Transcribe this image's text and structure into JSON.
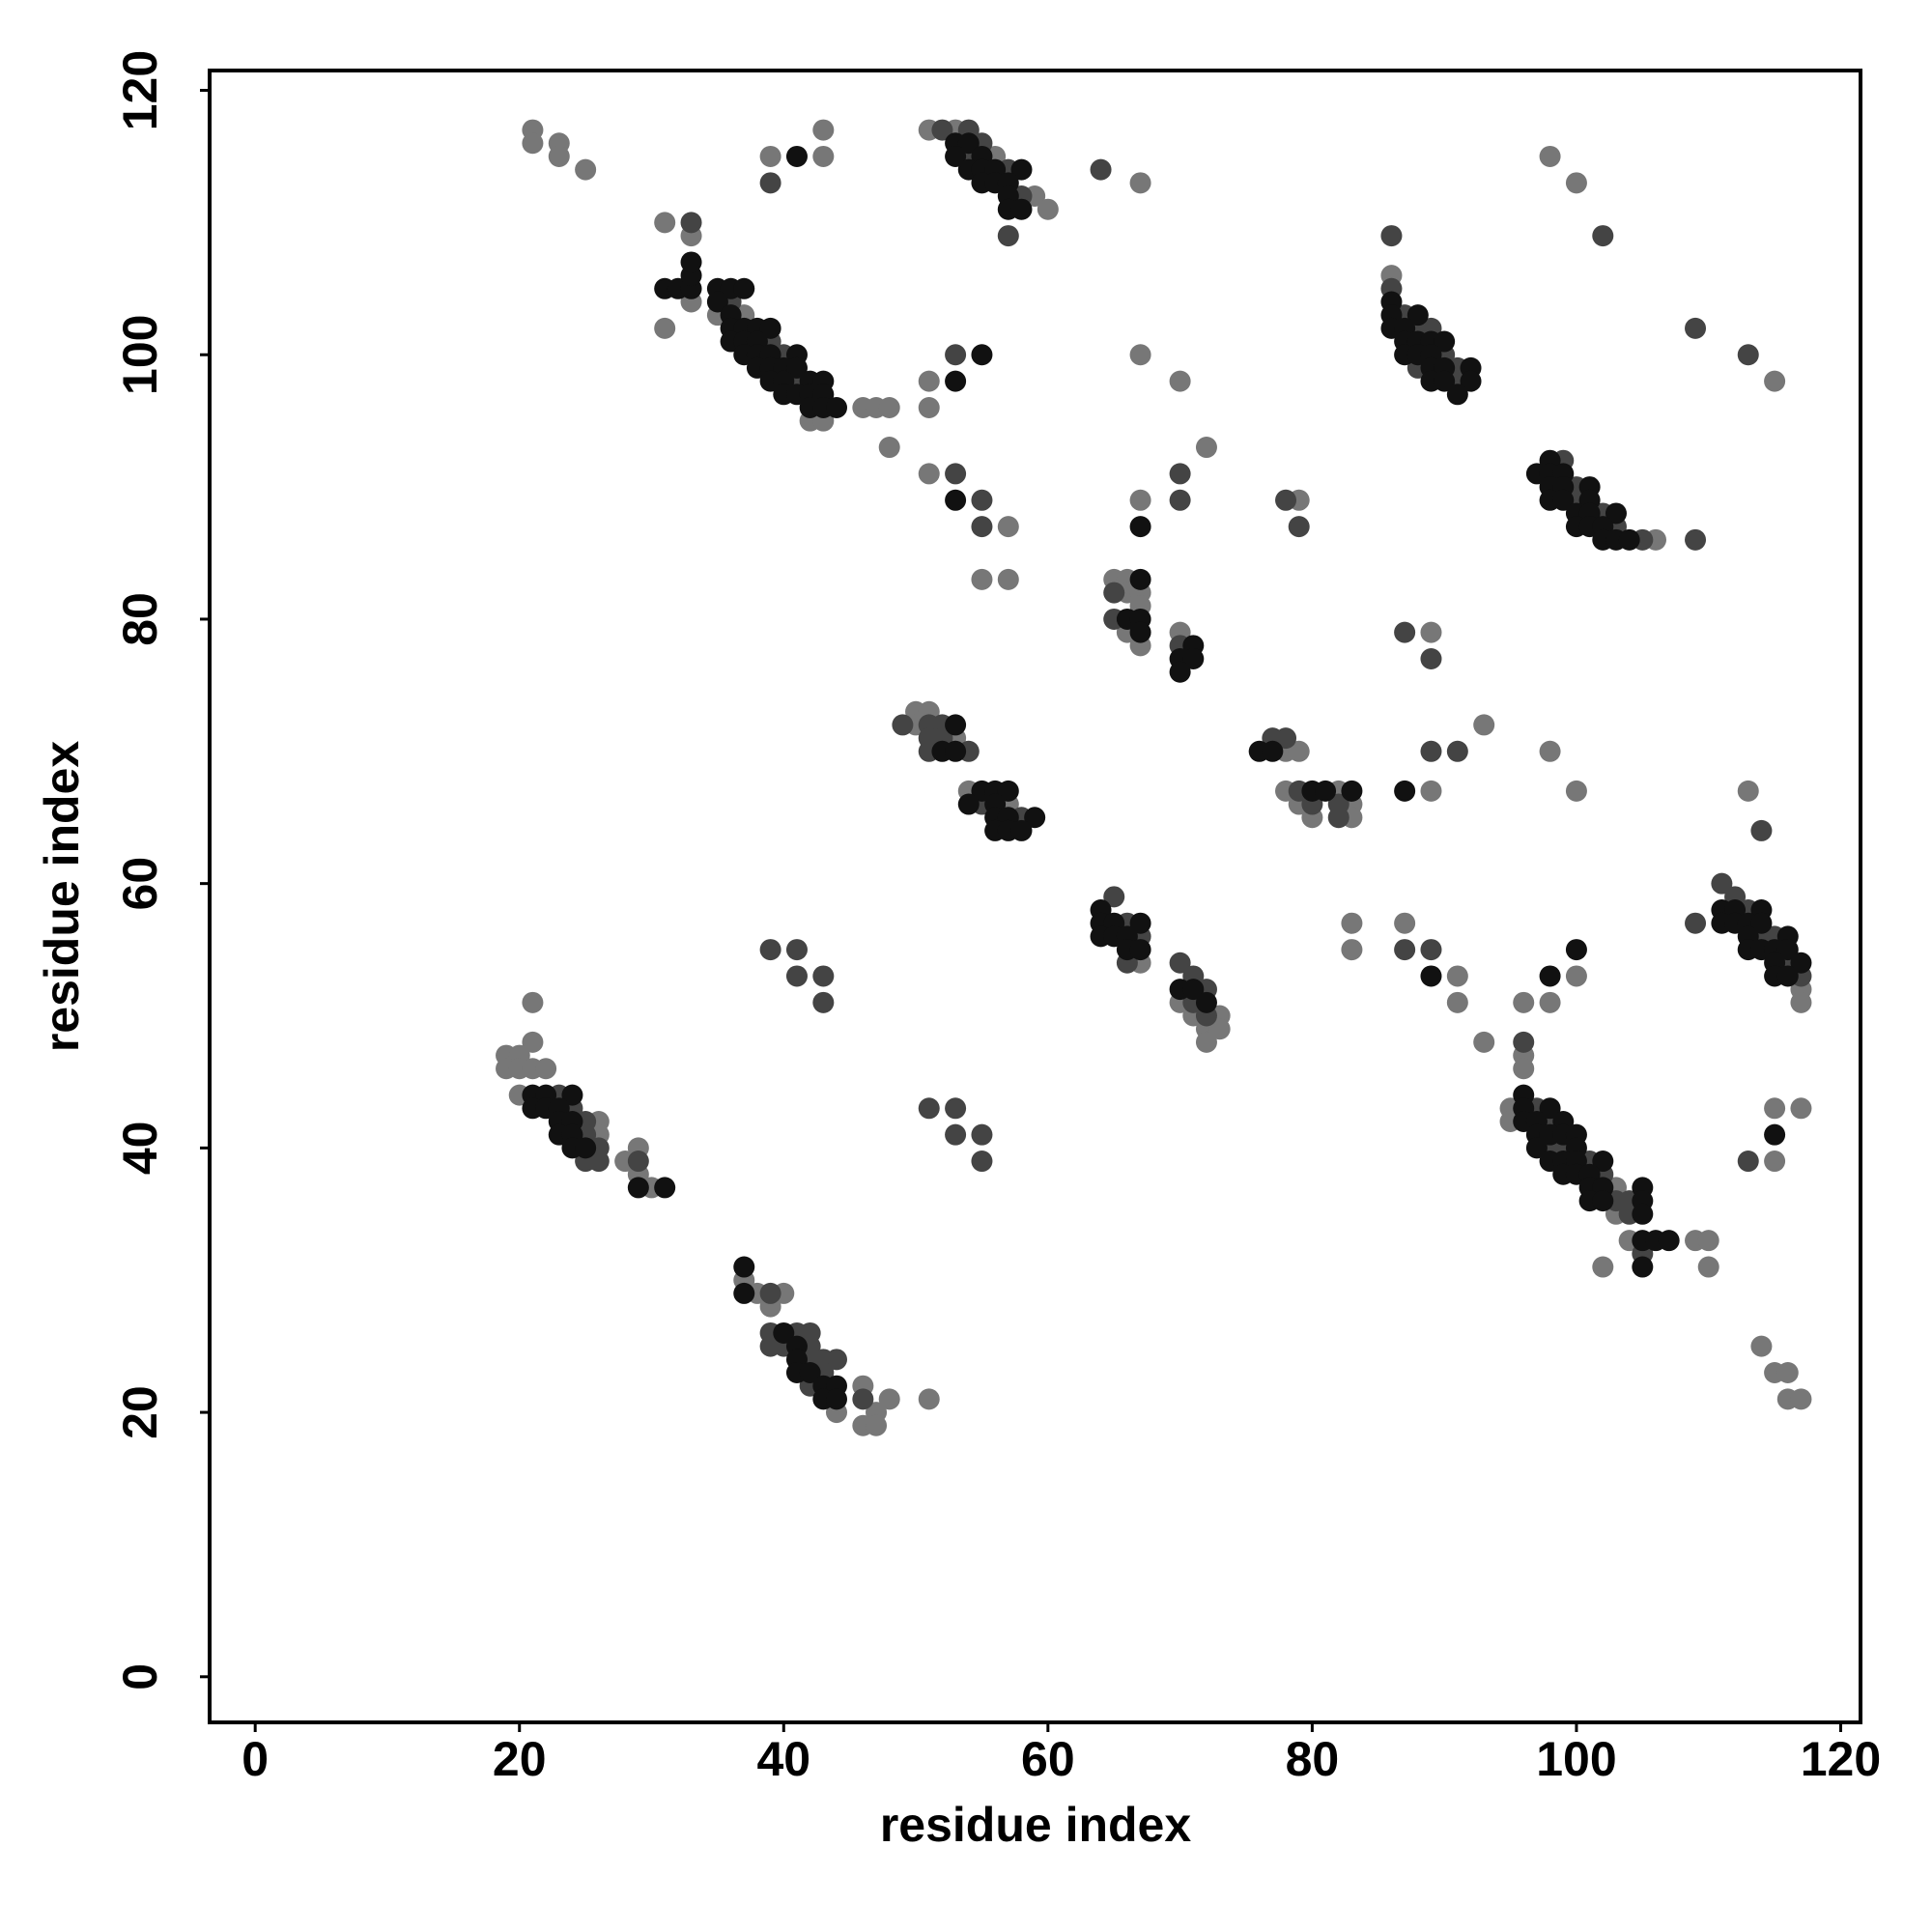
{
  "chart_data": {
    "type": "scatter",
    "xlabel": "residue index",
    "ylabel": "residue index",
    "xlim": [
      -3.45,
      121.5
    ],
    "ylim": [
      -3.45,
      121.5
    ],
    "xticks": [
      0,
      20,
      40,
      60,
      80,
      100,
      120
    ],
    "yticks": [
      0,
      20,
      40,
      60,
      80,
      100,
      120
    ],
    "series": [
      {
        "color": "#777777",
        "x": [
          21,
          21,
          23,
          23,
          25,
          31,
          33,
          31,
          33,
          35,
          37,
          42,
          43,
          46,
          47,
          48,
          48,
          39,
          43,
          43,
          51,
          53,
          56,
          59,
          60,
          67,
          51,
          51,
          67,
          70,
          72,
          51,
          57,
          55,
          57,
          67,
          65,
          66,
          66,
          67,
          67,
          66,
          67,
          70,
          79,
          89,
          93,
          89,
          98,
          100,
          50,
          51,
          50,
          53,
          54,
          57,
          78,
          79,
          78,
          79,
          80,
          82,
          83,
          83,
          67,
          70,
          71,
          73,
          72,
          73,
          72,
          83,
          83,
          87,
          91,
          91,
          93,
          96,
          98,
          100,
          115,
          98,
          100,
          86,
          106,
          113,
          117,
          117,
          96,
          96,
          95,
          95,
          103,
          103,
          104,
          102,
          109,
          110,
          110,
          115,
          115,
          117,
          114,
          115,
          116,
          116,
          117,
          21,
          21,
          19,
          20,
          19,
          20,
          21,
          22,
          20,
          26,
          26,
          28,
          29,
          29,
          30,
          37,
          38,
          39,
          40,
          44,
          46,
          47,
          46,
          47,
          48,
          51
        ],
        "values": [
          117,
          116,
          116,
          115,
          114,
          110,
          109,
          102,
          104,
          103,
          103,
          95,
          95,
          96,
          96,
          96,
          93,
          115,
          117,
          115,
          117,
          117,
          115,
          112,
          111,
          113,
          98,
          96,
          100,
          98,
          93,
          91,
          87,
          83,
          83,
          89,
          83,
          83,
          82,
          82,
          81,
          79,
          78,
          79,
          89,
          79,
          72,
          67,
          70,
          67,
          73,
          73,
          72,
          71,
          67,
          66,
          70,
          70,
          67,
          66,
          65,
          67,
          66,
          65,
          54,
          51,
          50,
          50,
          49,
          49,
          48,
          57,
          55,
          57,
          53,
          51,
          48,
          51,
          51,
          53,
          98,
          115,
          113,
          106,
          86,
          67,
          52,
          51,
          47,
          46,
          43,
          42,
          37,
          35,
          33,
          31,
          33,
          33,
          31,
          43,
          39,
          43,
          25,
          23,
          23,
          21,
          21,
          51,
          48,
          47,
          47,
          46,
          46,
          46,
          46,
          44,
          42,
          41,
          39,
          40,
          38,
          37,
          30,
          29,
          28,
          29,
          20,
          22,
          20,
          19,
          19,
          21,
          21
        ]
      },
      {
        "color": "#444444",
        "x": [
          33,
          36,
          39,
          40,
          41,
          39,
          52,
          54,
          55,
          54,
          57,
          58,
          57,
          64,
          53,
          53,
          55,
          55,
          70,
          70,
          65,
          65,
          70,
          78,
          79,
          87,
          89,
          89,
          91,
          49,
          51,
          52,
          51,
          52,
          54,
          51,
          55,
          58,
          77,
          78,
          79,
          80,
          82,
          82,
          65,
          66,
          67,
          66,
          70,
          71,
          72,
          71,
          72,
          87,
          89,
          109,
          113,
          102,
          86,
          86,
          87,
          88,
          89,
          90,
          88,
          91,
          91,
          99,
          100,
          100,
          102,
          103,
          105,
          109,
          111,
          112,
          113,
          114,
          115,
          116,
          117,
          109,
          114,
          96,
          97,
          98,
          98,
          99,
          101,
          102,
          103,
          104,
          104,
          105,
          113,
          23,
          24,
          25,
          25,
          26,
          25,
          26,
          29,
          39,
          41,
          41,
          43,
          43,
          51,
          53,
          53,
          55,
          55,
          39,
          39,
          41,
          42,
          39,
          40,
          42,
          42,
          43,
          44,
          43,
          42,
          46
        ],
        "values": [
          110,
          104,
          101,
          100,
          98,
          113,
          117,
          117,
          116,
          115,
          114,
          112,
          109,
          114,
          100,
          91,
          89,
          87,
          91,
          89,
          82,
          80,
          78,
          89,
          87,
          79,
          77,
          70,
          70,
          72,
          72,
          72,
          71,
          71,
          70,
          70,
          66,
          65,
          71,
          71,
          67,
          66,
          66,
          65,
          59,
          57,
          56,
          54,
          54,
          53,
          52,
          51,
          50,
          55,
          55,
          102,
          100,
          109,
          109,
          105,
          103,
          102,
          102,
          100,
          99,
          99,
          98,
          92,
          90,
          89,
          88,
          87,
          86,
          86,
          60,
          59,
          58,
          56,
          56,
          54,
          53,
          57,
          64,
          48,
          43,
          42,
          40,
          40,
          39,
          38,
          36,
          36,
          35,
          32,
          39,
          44,
          43,
          42,
          41,
          40,
          39,
          39,
          39,
          55,
          55,
          53,
          53,
          51,
          43,
          43,
          41,
          41,
          39,
          29,
          26,
          26,
          26,
          25,
          25,
          25,
          24,
          24,
          24,
          23,
          22,
          21
        ]
      },
      {
        "color": "#111111",
        "x": [
          31,
          32,
          33,
          33,
          33,
          35,
          36,
          37,
          35,
          36,
          36,
          37,
          38,
          39,
          36,
          37,
          38,
          37,
          38,
          39,
          41,
          38,
          39,
          40,
          41,
          39,
          40,
          42,
          43,
          40,
          41,
          42,
          43,
          42,
          43,
          44,
          41,
          53,
          54,
          53,
          55,
          54,
          55,
          56,
          55,
          56,
          58,
          57,
          57,
          57,
          58,
          53,
          55,
          53,
          67,
          67,
          66,
          67,
          67,
          71,
          70,
          71,
          70,
          87,
          53,
          52,
          53,
          55,
          56,
          57,
          54,
          56,
          56,
          57,
          59,
          56,
          57,
          58,
          76,
          77,
          80,
          81,
          83,
          64,
          64,
          65,
          67,
          64,
          65,
          66,
          66,
          67,
          70,
          71,
          72,
          89,
          98,
          100,
          86,
          86,
          88,
          86,
          87,
          87,
          88,
          89,
          90,
          87,
          88,
          89,
          89,
          90,
          92,
          89,
          90,
          92,
          91,
          97,
          98,
          98,
          99,
          101,
          98,
          99,
          98,
          99,
          101,
          100,
          101,
          103,
          100,
          101,
          102,
          102,
          103,
          104,
          111,
          112,
          114,
          111,
          112,
          113,
          114,
          113,
          116,
          113,
          114,
          115,
          116,
          115,
          117,
          115,
          116,
          96,
          96,
          98,
          96,
          97,
          99,
          97,
          98,
          99,
          100,
          97,
          100,
          98,
          99,
          100,
          102,
          99,
          100,
          101,
          101,
          102,
          105,
          101,
          102,
          105,
          105,
          105,
          106,
          107,
          105,
          115,
          21,
          22,
          24,
          21,
          22,
          23,
          23,
          24,
          23,
          24,
          24,
          25,
          29,
          31,
          37,
          37,
          40,
          41,
          41,
          41,
          42,
          43,
          44,
          43,
          44
        ],
        "values": [
          105,
          105,
          105,
          106,
          107,
          105,
          105,
          105,
          104,
          103,
          102,
          102,
          102,
          102,
          101,
          101,
          101,
          100,
          100,
          100,
          100,
          99,
          99,
          99,
          99,
          98,
          98,
          98,
          98,
          97,
          97,
          97,
          97,
          96,
          96,
          96,
          115,
          116,
          116,
          115,
          115,
          114,
          114,
          114,
          113,
          113,
          114,
          113,
          112,
          111,
          111,
          98,
          100,
          89,
          87,
          83,
          80,
          80,
          79,
          78,
          77,
          77,
          76,
          67,
          72,
          70,
          70,
          67,
          67,
          67,
          66,
          66,
          65,
          65,
          65,
          64,
          64,
          64,
          70,
          70,
          67,
          67,
          67,
          58,
          57,
          57,
          57,
          56,
          56,
          56,
          55,
          55,
          52,
          52,
          51,
          53,
          53,
          55,
          104,
          103,
          103,
          102,
          102,
          101,
          101,
          101,
          101,
          100,
          100,
          100,
          99,
          99,
          99,
          98,
          98,
          98,
          97,
          91,
          92,
          91,
          91,
          90,
          90,
          90,
          89,
          89,
          89,
          88,
          88,
          88,
          87,
          87,
          87,
          86,
          86,
          86,
          58,
          58,
          58,
          57,
          57,
          57,
          57,
          56,
          56,
          55,
          55,
          55,
          55,
          54,
          54,
          53,
          53,
          44,
          43,
          43,
          42,
          42,
          42,
          41,
          41,
          41,
          41,
          40,
          40,
          39,
          39,
          39,
          39,
          38,
          38,
          38,
          37,
          37,
          37,
          36,
          36,
          36,
          35,
          33,
          33,
          33,
          31,
          41,
          44,
          44,
          44,
          43,
          43,
          43,
          42,
          42,
          41,
          41,
          40,
          40,
          37,
          37,
          31,
          29,
          26,
          25,
          24,
          23,
          23,
          22,
          22,
          21,
          21
        ]
      }
    ]
  }
}
